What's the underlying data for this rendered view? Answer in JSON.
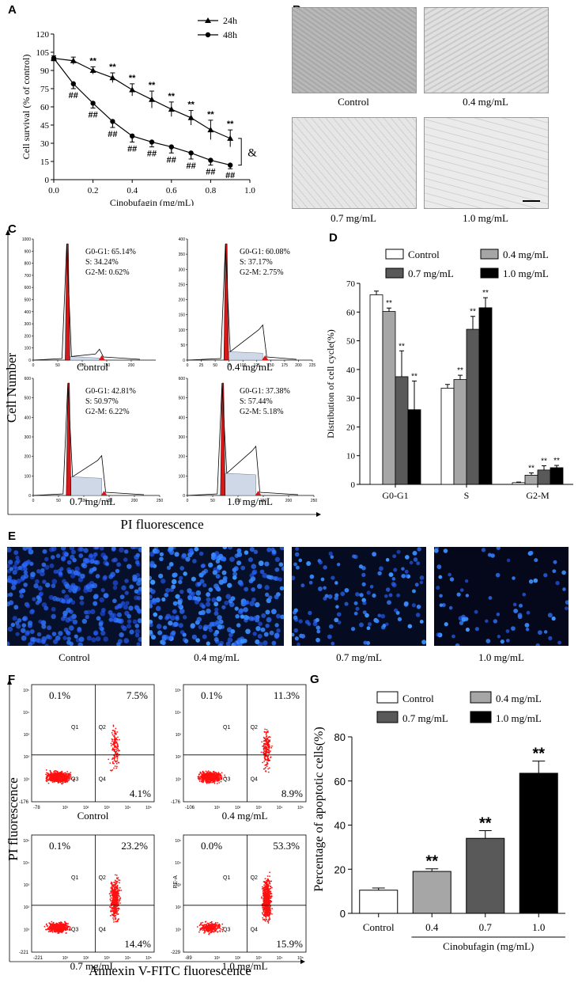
{
  "panel_letters": {
    "a": "A",
    "b": "B",
    "c": "C",
    "d": "D",
    "e": "E",
    "f": "F",
    "g": "G"
  },
  "panel_a": {
    "chart_data": {
      "type": "line",
      "title": "",
      "xlabel": "Cinobufagin (mg/mL)",
      "ylabel": "Cell survival (% of control)",
      "xlim": [
        0,
        1.0
      ],
      "ylim": [
        0,
        120
      ],
      "x_ticks": [
        "0.0",
        "0.2",
        "0.4",
        "0.6",
        "0.8",
        "1.0"
      ],
      "y_ticks": [
        "0",
        "15",
        "30",
        "45",
        "60",
        "75",
        "90",
        "105",
        "120"
      ],
      "x": [
        0,
        0.1,
        0.2,
        0.3,
        0.4,
        0.5,
        0.6,
        0.7,
        0.8,
        0.9
      ],
      "series": [
        {
          "name": "24h",
          "marker": "triangle",
          "values": [
            100,
            98,
            90,
            84,
            74,
            66,
            58,
            51,
            41,
            34
          ],
          "errors": [
            2,
            3,
            3,
            4,
            5,
            7,
            6,
            6,
            8,
            7
          ],
          "annot": [
            "",
            "",
            "**",
            "**",
            "**",
            "**",
            "**",
            "**",
            "**",
            "**"
          ]
        },
        {
          "name": "48h",
          "marker": "circle",
          "values": [
            100,
            79,
            63,
            48,
            36,
            31,
            27,
            22,
            16,
            12
          ],
          "errors": [
            2,
            4,
            4,
            5,
            5,
            4,
            5,
            5,
            4,
            3
          ],
          "annot": [
            "",
            "##",
            "##",
            "##",
            "##",
            "##",
            "##",
            "##",
            "##",
            "##"
          ]
        }
      ],
      "bracket_label": "&"
    }
  },
  "panel_b": {
    "labels": [
      "Control",
      "0.4 mg/mL",
      "0.7 mg/mL",
      "1.0 mg/mL"
    ]
  },
  "panel_c": {
    "ylabel": "Cell Number",
    "xlabel": "PI fluorescence",
    "plots": [
      {
        "label": "Control",
        "g0g1": "G0-G1: 65.14%",
        "s": "S: 34.24%",
        "g2m": "G2-M: 0.62%",
        "ymax": 1000,
        "yticks": [
          "0",
          "100",
          "200",
          "300",
          "400",
          "500",
          "600",
          "700",
          "800",
          "900",
          "1000"
        ],
        "xmax": 250,
        "xticks": [
          "0",
          "50",
          "100",
          "150",
          "200"
        ],
        "s_level": 0.03,
        "g2_level": 0.09
      },
      {
        "label": "0.4 mg/mL",
        "g0g1": "G0-G1: 60.08%",
        "s": "S: 37.17%",
        "g2m": "G2-M: 2.75%",
        "ymax": 400,
        "yticks": [
          "0",
          "50",
          "100",
          "150",
          "200",
          "250",
          "300",
          "350",
          "400"
        ],
        "xmax": 225,
        "xticks": [
          "0",
          "25",
          "50",
          "75",
          "100",
          "125",
          "150",
          "175",
          "200",
          "225"
        ],
        "s_level": 0.07,
        "g2_level": 0.29
      },
      {
        "label": "0.7 mg/mL",
        "g0g1": "G0-G1: 42.81%",
        "s": "S: 50.97%",
        "g2m": "G2-M: 6.22%",
        "ymax": 600,
        "yticks": [
          "0",
          "100",
          "200",
          "300",
          "400",
          "500",
          "600"
        ],
        "xmax": 250,
        "xticks": [
          "0",
          "50",
          "100",
          "150",
          "200",
          "250"
        ],
        "s_level": 0.16,
        "g2_level": 0.34
      },
      {
        "label": "1.0 mg/mL",
        "g0g1": "G0-G1: 37.38%",
        "s": "S: 57.44%",
        "g2m": "G2-M: 5.18%",
        "ymax": 600,
        "yticks": [
          "0",
          "100",
          "200",
          "300",
          "400",
          "500",
          "600"
        ],
        "xmax": 250,
        "xticks": [
          "0",
          "50",
          "100",
          "150",
          "200",
          "250"
        ],
        "s_level": 0.19,
        "g2_level": 0.42
      }
    ]
  },
  "panel_d": {
    "chart_data": {
      "type": "bar",
      "ylabel": "Distribution of cell cycle(%)",
      "xlabel": "",
      "ylim": [
        0,
        70
      ],
      "y_ticks": [
        "0",
        "10",
        "20",
        "30",
        "40",
        "50",
        "60",
        "70"
      ],
      "categories": [
        "G0-G1",
        "S",
        "G2-M"
      ],
      "series": [
        {
          "name": "Control",
          "color": "#ffffff",
          "values": [
            66,
            33.5,
            0.6
          ],
          "errors": [
            1.3,
            1.3,
            0.2
          ],
          "annot": [
            "",
            "",
            ""
          ]
        },
        {
          "name": "0.4 mg/mL",
          "color": "#a6a6a6",
          "values": [
            60.2,
            36.5,
            3.2
          ],
          "errors": [
            1.2,
            1.5,
            0.8
          ],
          "annot": [
            "**",
            "**",
            "**"
          ]
        },
        {
          "name": "0.7 mg/mL",
          "color": "#595959",
          "values": [
            37.5,
            54,
            5
          ],
          "errors": [
            9,
            4.5,
            1.5
          ],
          "annot": [
            "**",
            "**",
            "**"
          ]
        },
        {
          "name": "1.0 mg/mL",
          "color": "#000000",
          "values": [
            26,
            61.5,
            5.8
          ],
          "errors": [
            10,
            3.5,
            0.8
          ],
          "annot": [
            "**",
            "**",
            "**"
          ]
        }
      ]
    }
  },
  "panel_e": {
    "labels": [
      "Control",
      "0.4 mg/mL",
      "0.7 mg/mL",
      "1.0 mg/mL"
    ]
  },
  "panel_f": {
    "ylabel": "PI fluorescence",
    "xlabel": "Annexin V-FITC fluorescence",
    "plots": [
      {
        "label": "Control",
        "ul": "0.1%",
        "ur": "7.5%",
        "lr": "4.1%",
        "ymin": "-176",
        "xmin": "-78",
        "y_axis_name": ""
      },
      {
        "label": "0.4 mg/mL",
        "ul": "0.1%",
        "ur": "11.3%",
        "lr": "8.9%",
        "ymin": "-176",
        "xmin": "-106",
        "y_axis_name": ""
      },
      {
        "label": "0.7 mg/mL",
        "ul": "0.1%",
        "ur": "23.2%",
        "lr": "14.4%",
        "ymin": "-221",
        "xmin": "-221",
        "y_axis_name": ""
      },
      {
        "label": "1.0 mg/mL",
        "ul": "0.0%",
        "ur": "53.3%",
        "lr": "15.9%",
        "ymin": "-229",
        "xmin": "-89",
        "y_axis_name": "PE-A"
      }
    ],
    "quad_labels": [
      "Q1",
      "Q2",
      "Q3",
      "Q4"
    ],
    "axis_exponents": [
      "10³",
      "10²",
      "10³",
      "10⁴",
      "10⁵"
    ]
  },
  "panel_g": {
    "chart_data": {
      "type": "bar",
      "ylabel": "Percentage of apoptotic cells(%)",
      "xlabel": "Cinobufagin (mg/mL)",
      "ylim": [
        0,
        80
      ],
      "y_ticks": [
        "0",
        "20",
        "40",
        "60",
        "80"
      ],
      "categories": [
        "Control",
        "0.4",
        "0.7",
        "1.0"
      ],
      "legend": [
        "Control",
        "0.4 mg/mL",
        "0.7 mg/mL",
        "1.0 mg/mL"
      ],
      "colors": [
        "#ffffff",
        "#a6a6a6",
        "#595959",
        "#000000"
      ],
      "values": [
        10.5,
        19,
        34,
        63.5
      ],
      "errors": [
        1,
        1.2,
        3.5,
        5.5
      ],
      "annot": [
        "",
        "**",
        "**",
        "**"
      ]
    }
  }
}
